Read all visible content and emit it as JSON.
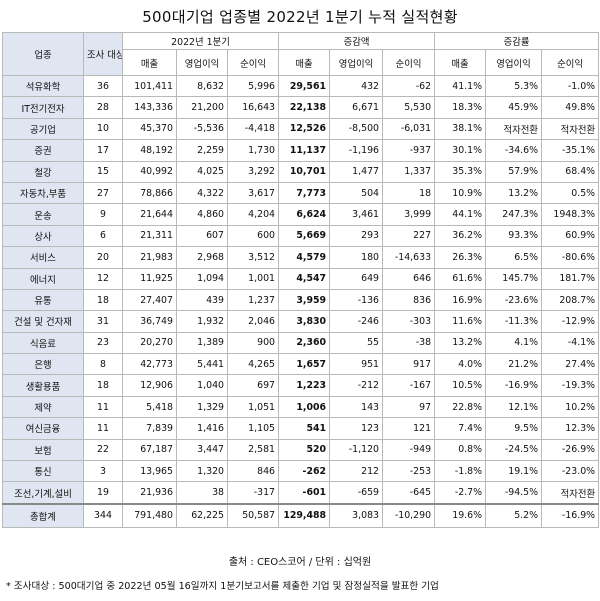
{
  "title": "500대기업 업종별 2022년 1분기 누적 실적현황",
  "headers": {
    "industry": "업종",
    "count": "조사 대상",
    "group_q1": "2022년 1분기",
    "group_diff": "증감액",
    "group_rate": "증감률",
    "sales": "매출",
    "op_profit": "영업이익",
    "net_profit": "순이익"
  },
  "rows": [
    [
      "석유화학",
      "36",
      "101,411",
      "8,632",
      "5,996",
      "29,561",
      "432",
      "-62",
      "41.1%",
      "5.3%",
      "-1.0%"
    ],
    [
      "IT전기전자",
      "28",
      "143,336",
      "21,200",
      "16,643",
      "22,138",
      "6,671",
      "5,530",
      "18.3%",
      "45.9%",
      "49.8%"
    ],
    [
      "공기업",
      "10",
      "45,370",
      "-5,536",
      "-4,418",
      "12,526",
      "-8,500",
      "-6,031",
      "38.1%",
      "적자전환",
      "적자전환"
    ],
    [
      "증권",
      "17",
      "48,192",
      "2,259",
      "1,730",
      "11,137",
      "-1,196",
      "-937",
      "30.1%",
      "-34.6%",
      "-35.1%"
    ],
    [
      "철강",
      "15",
      "40,992",
      "4,025",
      "3,292",
      "10,701",
      "1,477",
      "1,337",
      "35.3%",
      "57.9%",
      "68.4%"
    ],
    [
      "자동차,부품",
      "27",
      "78,866",
      "4,322",
      "3,617",
      "7,773",
      "504",
      "18",
      "10.9%",
      "13.2%",
      "0.5%"
    ],
    [
      "운송",
      "9",
      "21,644",
      "4,860",
      "4,204",
      "6,624",
      "3,461",
      "3,999",
      "44.1%",
      "247.3%",
      "1948.3%"
    ],
    [
      "상사",
      "6",
      "21,311",
      "607",
      "600",
      "5,669",
      "293",
      "227",
      "36.2%",
      "93.3%",
      "60.9%"
    ],
    [
      "서비스",
      "20",
      "21,983",
      "2,968",
      "3,512",
      "4,579",
      "180",
      "-14,633",
      "26.3%",
      "6.5%",
      "-80.6%"
    ],
    [
      "에너지",
      "12",
      "11,925",
      "1,094",
      "1,001",
      "4,547",
      "649",
      "646",
      "61.6%",
      "145.7%",
      "181.7%"
    ],
    [
      "유통",
      "18",
      "27,407",
      "439",
      "1,237",
      "3,959",
      "-136",
      "836",
      "16.9%",
      "-23.6%",
      "208.7%"
    ],
    [
      "건설 및 건자재",
      "31",
      "36,749",
      "1,932",
      "2,046",
      "3,830",
      "-246",
      "-303",
      "11.6%",
      "-11.3%",
      "-12.9%"
    ],
    [
      "식음료",
      "23",
      "20,270",
      "1,389",
      "900",
      "2,360",
      "55",
      "-38",
      "13.2%",
      "4.1%",
      "-4.1%"
    ],
    [
      "은행",
      "8",
      "42,773",
      "5,441",
      "4,265",
      "1,657",
      "951",
      "917",
      "4.0%",
      "21.2%",
      "27.4%"
    ],
    [
      "생활용품",
      "18",
      "12,906",
      "1,040",
      "697",
      "1,223",
      "-212",
      "-167",
      "10.5%",
      "-16.9%",
      "-19.3%"
    ],
    [
      "제약",
      "11",
      "5,418",
      "1,329",
      "1,051",
      "1,006",
      "143",
      "97",
      "22.8%",
      "12.1%",
      "10.2%"
    ],
    [
      "여신금융",
      "11",
      "7,839",
      "1,416",
      "1,105",
      "541",
      "123",
      "121",
      "7.4%",
      "9.5%",
      "12.3%"
    ],
    [
      "보험",
      "22",
      "67,187",
      "3,447",
      "2,581",
      "520",
      "-1,120",
      "-949",
      "0.8%",
      "-24.5%",
      "-26.9%"
    ],
    [
      "통신",
      "3",
      "13,965",
      "1,320",
      "846",
      "-262",
      "212",
      "-253",
      "-1.8%",
      "19.1%",
      "-23.0%"
    ],
    [
      "조선,기계,설비",
      "19",
      "21,936",
      "38",
      "-317",
      "-601",
      "-659",
      "-645",
      "-2.7%",
      "-94.5%",
      "적자전환"
    ]
  ],
  "total": [
    "총합계",
    "344",
    "791,480",
    "62,225",
    "50,587",
    "129,488",
    "3,083",
    "-10,290",
    "19.6%",
    "5.2%",
    "-16.9%"
  ],
  "source": "출처 : CEO스코어 / 단위 : 십억원",
  "note": "* 조사대상 : 500대기업 중 2022년 05월 16일까지 1분기보고서를 제출한 기업 및 잠정실적을 발표한 기업"
}
